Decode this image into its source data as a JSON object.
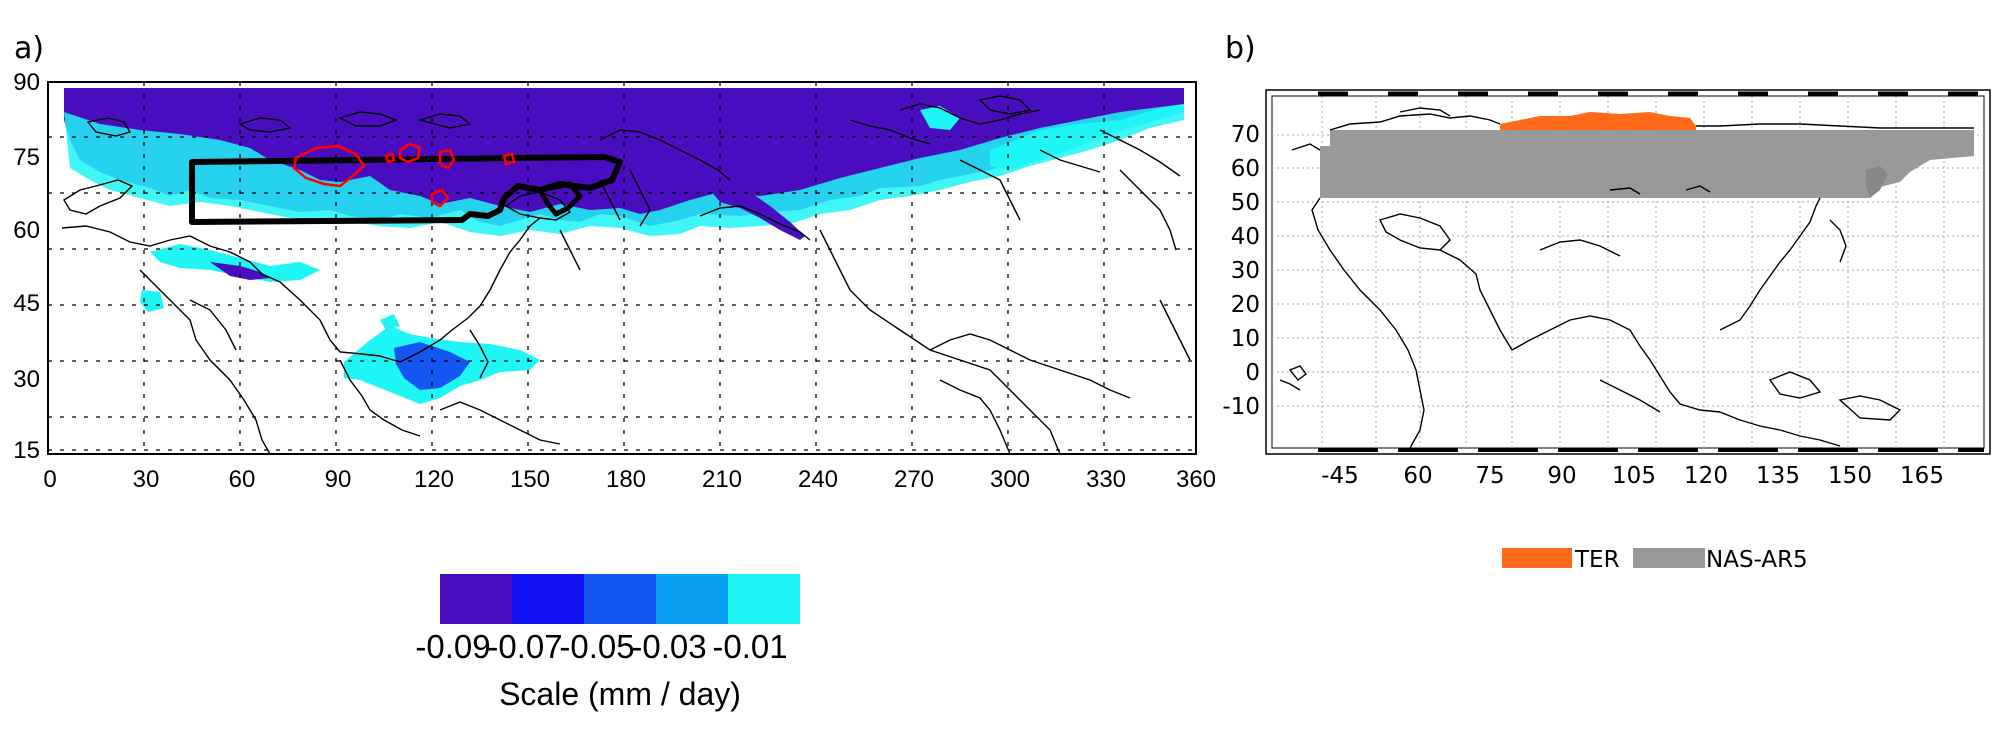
{
  "panel_a": {
    "label": "a)",
    "x_ticks": [
      "0",
      "30",
      "60",
      "90",
      "120",
      "150",
      "180",
      "210",
      "240",
      "270",
      "300",
      "330",
      "360"
    ],
    "y_ticks": [
      "90",
      "75",
      "60",
      "45",
      "30",
      "15"
    ],
    "colorbar": {
      "colors": [
        "#4a0cbf",
        "#1010f5",
        "#1456f0",
        "#0aa0f2",
        "#1ef5f5"
      ],
      "ticks": [
        "-0.09",
        "-0.07",
        "-0.05",
        "-0.03",
        "-0.01"
      ],
      "title": "Scale (mm / day)"
    },
    "region_box_color": "#000000",
    "contour_color": "#ff0000"
  },
  "panel_b": {
    "label": "b)",
    "x_ticks": [
      "45",
      "60",
      "75",
      "90",
      "105",
      "120",
      "135",
      "150",
      "165"
    ],
    "y_ticks": [
      "70",
      "60",
      "50",
      "40",
      "30",
      "20",
      "10",
      "0",
      "-10"
    ],
    "legend": [
      {
        "label": "TER",
        "color": "#ff6a1a"
      },
      {
        "label": "NAS-AR5",
        "color": "#999999"
      }
    ]
  },
  "chart_data": [
    {
      "type": "heatmap",
      "panel": "a)",
      "x_range": [
        0,
        360
      ],
      "y_range": [
        15,
        90
      ],
      "grid": true,
      "colorbar_bins": [
        -0.09,
        -0.07,
        -0.05,
        -0.03,
        -0.01
      ],
      "colorbar_title": "Scale (mm / day)",
      "features": [
        "precipitation change field",
        "black region outline",
        "red contours"
      ]
    },
    {
      "type": "heatmap",
      "panel": "b)",
      "x_ticks": [
        45,
        60,
        75,
        90,
        105,
        120,
        135,
        150,
        165
      ],
      "y_ticks": [
        70,
        60,
        50,
        40,
        30,
        20,
        10,
        0,
        -10
      ],
      "grid": true,
      "regions": [
        "TER",
        "NAS-AR5"
      ],
      "legend_placement": "bottom"
    }
  ]
}
